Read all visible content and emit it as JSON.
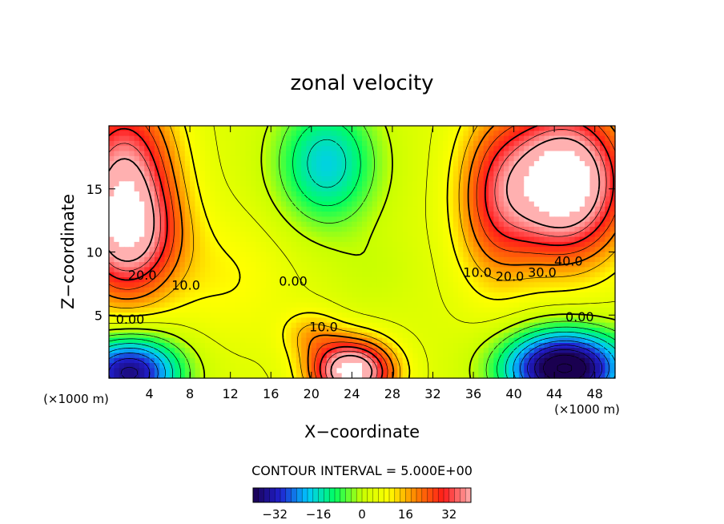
{
  "chart_data": {
    "type": "heatmap",
    "title": "zonal velocity",
    "xlabel": "X−coordinate",
    "ylabel": "Z−coordinate",
    "x_unit_label": "(×1000 m)",
    "z_unit_label": "(×1000 m)",
    "xlim": [
      0,
      50
    ],
    "ylim": [
      0,
      20
    ],
    "x_ticks": [
      4,
      8,
      12,
      16,
      20,
      24,
      28,
      32,
      36,
      40,
      44,
      48
    ],
    "y_ticks": [
      5,
      10,
      15
    ],
    "contour_interval_text": "CONTOUR INTERVAL = 5.000E+00",
    "colorbar": {
      "range": [
        -40,
        40
      ],
      "ticks": [
        "−32",
        "−16",
        "0",
        "16",
        "32"
      ],
      "tick_values": [
        -32,
        -16,
        0,
        16,
        32
      ],
      "colors": [
        "#1a0050",
        "#2020d0",
        "#00c8ff",
        "#00ff60",
        "#c8ff00",
        "#ffff00",
        "#ff8000",
        "#ff1a1a",
        "#ffb0b0"
      ]
    },
    "contour_labels": [
      {
        "text": "20.0",
        "x": 3.3,
        "z": 8.2
      },
      {
        "text": "10.0",
        "x": 7.6,
        "z": 7.4
      },
      {
        "text": "0.00",
        "x": 2.1,
        "z": 4.7
      },
      {
        "text": "0.00",
        "x": 18.2,
        "z": 7.7
      },
      {
        "text": "10.0",
        "x": 21.2,
        "z": 4.1
      },
      {
        "text": "10.0",
        "x": 36.4,
        "z": 8.4
      },
      {
        "text": "20.0",
        "x": 39.6,
        "z": 8.1
      },
      {
        "text": "30.0",
        "x": 42.8,
        "z": 8.4
      },
      {
        "text": "40.0",
        "x": 45.4,
        "z": 9.3
      },
      {
        "text": "0.00",
        "x": 46.5,
        "z": 4.9
      }
    ],
    "features": [
      {
        "x": 1.5,
        "z": 14.5,
        "u": 40,
        "sx": 5,
        "sz": 8
      },
      {
        "x": 2.5,
        "z": 11.0,
        "u": 12,
        "sx": 5,
        "sz": 4
      },
      {
        "x": 45.0,
        "z": 15.5,
        "u": 50,
        "sx": 6,
        "sz": 6
      },
      {
        "x": 38.0,
        "z": 14.0,
        "u": 18,
        "sx": 4,
        "sz": 7
      },
      {
        "x": 24.0,
        "z": 0.5,
        "u": 46,
        "sx": 4,
        "sz": 2.5
      },
      {
        "x": 20.0,
        "z": 3.5,
        "u": 10,
        "sx": 3,
        "sz": 2
      },
      {
        "x": 2.0,
        "z": 0.5,
        "u": -42,
        "sx": 5,
        "sz": 3
      },
      {
        "x": 45.0,
        "z": 0.8,
        "u": -50,
        "sx": 6,
        "sz": 3
      },
      {
        "x": 21.5,
        "z": 17.0,
        "u": -22,
        "sx": 5,
        "sz": 5
      },
      {
        "x": 26.0,
        "z": 8.5,
        "u": -3,
        "sx": 4,
        "sz": 3
      },
      {
        "x": 12.0,
        "z": 8.0,
        "u": 6,
        "sx": 6,
        "sz": 5
      }
    ],
    "background_u": 4,
    "contour_levels": [
      -45,
      -40,
      -35,
      -30,
      -25,
      -20,
      -15,
      -10,
      -5,
      0,
      5,
      10,
      15,
      20,
      25,
      30,
      35,
      40
    ],
    "bold_levels": [
      0,
      10,
      20,
      30,
      40
    ],
    "clip_above": 46
  }
}
